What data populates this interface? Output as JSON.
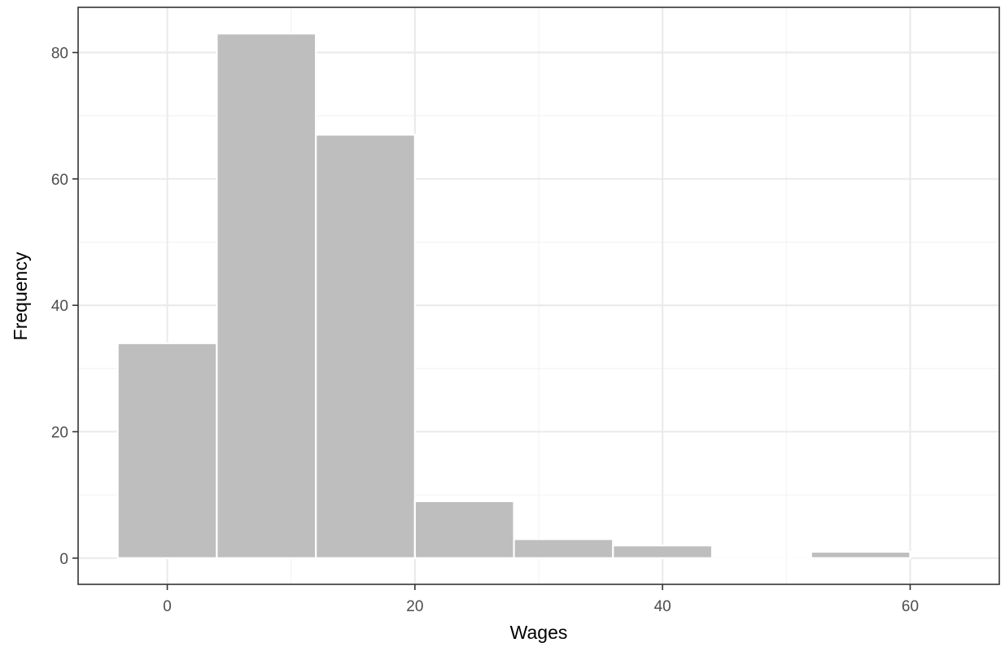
{
  "chart_data": {
    "type": "bar",
    "xlabel": "Wages",
    "ylabel": "Frequency",
    "xlim": [
      -7.2,
      67.2
    ],
    "ylim": [
      -4.15,
      87.15
    ],
    "x_ticks": [
      0,
      20,
      40,
      60
    ],
    "y_ticks": [
      0,
      20,
      40,
      60,
      80
    ],
    "bins": [
      {
        "x_start": -4,
        "x_end": 4,
        "count": 34
      },
      {
        "x_start": 4,
        "x_end": 12,
        "count": 83
      },
      {
        "x_start": 12,
        "x_end": 20,
        "count": 67
      },
      {
        "x_start": 20,
        "x_end": 28,
        "count": 9
      },
      {
        "x_start": 28,
        "x_end": 36,
        "count": 3
      },
      {
        "x_start": 36,
        "x_end": 44,
        "count": 2
      },
      {
        "x_start": 44,
        "x_end": 52,
        "count": 0
      },
      {
        "x_start": 52,
        "x_end": 60,
        "count": 1
      }
    ],
    "bar_color": "#bebebe",
    "bar_outline_color": "#ffffff",
    "grid": true,
    "legend": "none"
  }
}
